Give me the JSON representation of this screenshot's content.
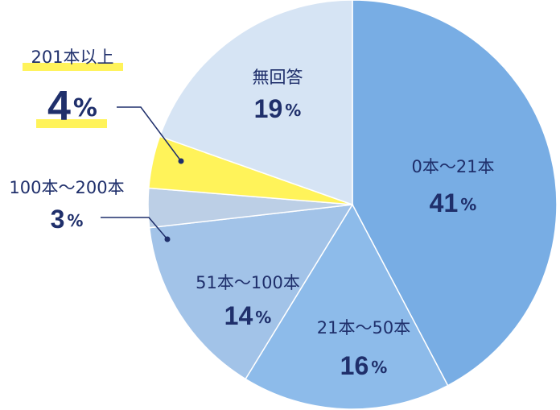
{
  "chart_data": {
    "type": "pie",
    "categories": [
      "0本～21本",
      "21本～50本",
      "51本～100本",
      "100本～200本",
      "201本以上",
      "無回答"
    ],
    "values": [
      41,
      16,
      14,
      3,
      4,
      19
    ],
    "unit": "%",
    "colors": [
      "#78ade4",
      "#8dbbea",
      "#a2c3e8",
      "#bccfe6",
      "#fff35a",
      "#d6e4f4"
    ],
    "highlight": 4
  }
}
